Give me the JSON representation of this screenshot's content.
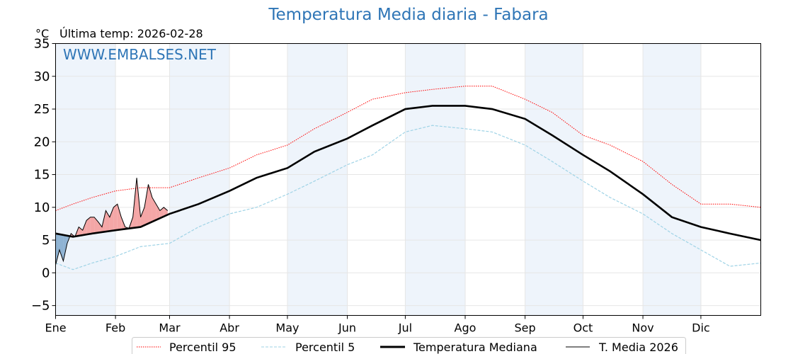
{
  "title": "Temperatura Media diaria - Fabara",
  "units_label": "°C",
  "last_temp_label": "Última temp: 2026-02-28",
  "watermark": "WWW.EMBALSES.NET",
  "colors": {
    "title": "#2e75b6",
    "watermark": "#2e75b6",
    "p95": "#ff0000",
    "p5": "#9fd3e6",
    "median": "#000000",
    "year": "#000000",
    "above_fill": "#f4a6a6",
    "below_fill": "#8fb3d3",
    "band": "#eef4fb"
  },
  "chart_data": {
    "type": "line",
    "title": "Temperatura Media diaria - Fabara",
    "ylabel": "°C",
    "ylim": [
      -6.5,
      35
    ],
    "xlim": [
      1,
      366
    ],
    "yticks": [
      -5,
      0,
      5,
      10,
      15,
      20,
      25,
      30,
      35
    ],
    "month_labels": [
      "Ene",
      "Feb",
      "Mar",
      "Abr",
      "May",
      "Jun",
      "Jul",
      "Ago",
      "Sep",
      "Oct",
      "Nov",
      "Dic"
    ],
    "month_start_days": [
      1,
      32,
      60,
      91,
      121,
      152,
      182,
      213,
      244,
      274,
      305,
      335
    ],
    "legend_position": "bottom",
    "grid": true,
    "series": [
      {
        "name": "Percentil 95",
        "style": "dotted",
        "color": "#ff0000",
        "x": [
          1,
          10,
          20,
          32,
          45,
          60,
          75,
          91,
          105,
          121,
          135,
          152,
          165,
          182,
          196,
          213,
          227,
          244,
          258,
          274,
          288,
          305,
          320,
          335,
          350,
          366
        ],
        "y": [
          9.5,
          10.5,
          11.5,
          12.5,
          13,
          13,
          14.5,
          16,
          18,
          19.5,
          22,
          24.5,
          26.5,
          27.5,
          28,
          28.5,
          28.5,
          26.5,
          24.5,
          21,
          19.5,
          17,
          13.5,
          10.5,
          10.5,
          10
        ]
      },
      {
        "name": "Percentil 5",
        "style": "dashed",
        "color": "#9fd3e6",
        "x": [
          1,
          10,
          20,
          32,
          45,
          60,
          75,
          91,
          105,
          121,
          135,
          152,
          165,
          182,
          196,
          213,
          227,
          244,
          258,
          274,
          288,
          305,
          320,
          335,
          350,
          366
        ],
        "y": [
          1.5,
          0.5,
          1.5,
          2.5,
          4,
          4.5,
          7,
          9,
          10,
          12,
          14,
          16.5,
          18,
          21.5,
          22.5,
          22,
          21.5,
          19.5,
          17,
          14,
          11.5,
          9,
          6,
          3.5,
          1,
          1.5
        ]
      },
      {
        "name": "Temperatura Mediana",
        "style": "solid-thick",
        "color": "#000000",
        "x": [
          1,
          10,
          20,
          32,
          45,
          60,
          75,
          91,
          105,
          121,
          135,
          152,
          165,
          182,
          196,
          213,
          227,
          244,
          258,
          274,
          288,
          305,
          320,
          335,
          350,
          366
        ],
        "y": [
          6,
          5.5,
          6,
          6.5,
          7,
          9,
          10.5,
          12.5,
          14.5,
          16,
          18.5,
          20.5,
          22.5,
          25,
          25.5,
          25.5,
          25,
          23.5,
          21,
          18,
          15.5,
          12,
          8.5,
          7,
          6,
          5
        ]
      },
      {
        "name": "T. Media 2026",
        "style": "solid-thin",
        "color": "#000000",
        "x": [
          1,
          3,
          5,
          7,
          9,
          11,
          13,
          15,
          17,
          19,
          21,
          23,
          25,
          27,
          29,
          31,
          33,
          35,
          37,
          39,
          41,
          43,
          45,
          47,
          49,
          51,
          53,
          55,
          57,
          59
        ],
        "y": [
          1.2,
          3.5,
          1.8,
          4.5,
          6,
          5.5,
          7,
          6.5,
          8,
          8.5,
          8.5,
          7.8,
          7,
          9.5,
          8.5,
          10,
          10.5,
          8.5,
          7,
          6.8,
          8.5,
          14.5,
          8.5,
          10,
          13.5,
          11.5,
          10.5,
          9.5,
          10,
          9.5
        ]
      }
    ]
  },
  "legend": {
    "p95": "Percentil 95",
    "p5": "Percentil 5",
    "median": "Temperatura Mediana",
    "year": "T. Media 2026"
  }
}
